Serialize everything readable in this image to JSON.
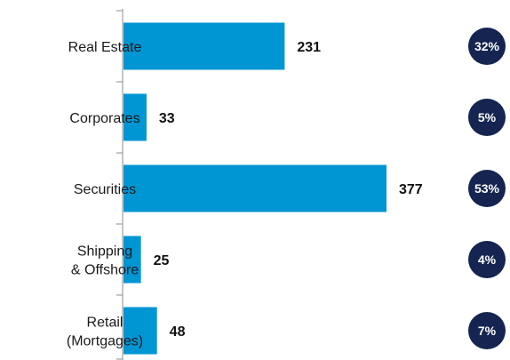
{
  "chart_data": {
    "type": "bar",
    "orientation": "horizontal",
    "categories": [
      [
        "Real Estate"
      ],
      [
        "Corporates"
      ],
      [
        "Securities"
      ],
      [
        "Shipping",
        "& Offshore"
      ],
      [
        "Retail",
        "(Mortgages)"
      ]
    ],
    "values": [
      231,
      33,
      377,
      25,
      48
    ],
    "shares": [
      "32%",
      "5%",
      "53%",
      "4%",
      "7%"
    ],
    "xlim": [
      0,
      420
    ],
    "grid": false,
    "legend": "none"
  },
  "colors": {
    "bar": "#0095d3",
    "badge": "#152450",
    "axis": "#8c8c8c"
  }
}
